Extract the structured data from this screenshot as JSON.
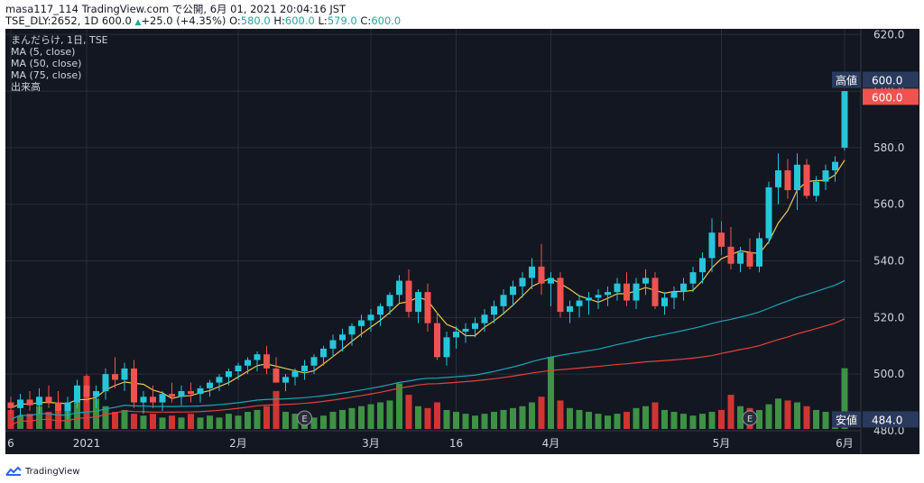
{
  "header": {
    "line1": "masa117_114 TradingView.com で公開, 6月 01, 2021 20:04:16 JST",
    "symbol_info": "TSE_DLY:2652, 1D 600.0",
    "change": "+25.0 (+4.35%)",
    "o_label": "O:",
    "o_value": "580.0",
    "h_label": "H:",
    "h_value": "600.0",
    "l_label": "L:",
    "l_value": "579.0",
    "c_label": "C:",
    "c_value": "600.0"
  },
  "legend": {
    "title": "まんだらけ, 1日, TSE",
    "ma5": "MA (5, close)",
    "ma50": "MA (50, close)",
    "ma75": "MA (75, close)",
    "volume": "出来高"
  },
  "tags": {
    "high_label": "高値",
    "high_value": "600.0",
    "last_value": "600.0",
    "low_label": "安値",
    "low_value": "484.0"
  },
  "footer": {
    "brand": "TradingView"
  },
  "colors": {
    "background": "#131722",
    "up": "#26c6da",
    "down": "#ef5350",
    "vol_up": "#43a047",
    "vol_down": "#e53935",
    "ma5": "#f2c84b",
    "ma50": "#1ba6b5",
    "ma75": "#e0443a",
    "grid": "#2a2e39",
    "text": "#d1d4dc"
  },
  "chart_data": {
    "type": "candlestick",
    "y_axis": {
      "ticks": [
        480,
        500,
        520,
        540,
        560,
        580,
        600,
        620
      ],
      "range": [
        480,
        622
      ]
    },
    "x_ticks": [
      "6",
      "2021",
      "2月",
      "3月",
      "16",
      "4月",
      "5月",
      "6月"
    ],
    "earnings_markers": [
      "E",
      "E"
    ],
    "series": [
      {
        "name": "price",
        "candles": [
          [
            490,
            492,
            486,
            488
          ],
          [
            488,
            493,
            485,
            491
          ],
          [
            491,
            494,
            487,
            489
          ],
          [
            489,
            495,
            486,
            492
          ],
          [
            492,
            496,
            488,
            490
          ],
          [
            490,
            494,
            486,
            487
          ],
          [
            487,
            492,
            484,
            490
          ],
          [
            490,
            498,
            488,
            496
          ],
          [
            496,
            500,
            490,
            492
          ],
          [
            492,
            496,
            488,
            494
          ],
          [
            494,
            502,
            491,
            500
          ],
          [
            500,
            506,
            495,
            498
          ],
          [
            498,
            504,
            494,
            502
          ],
          [
            502,
            505,
            488,
            490
          ],
          [
            490,
            494,
            486,
            492
          ],
          [
            492,
            496,
            488,
            490
          ],
          [
            490,
            494,
            487,
            493
          ],
          [
            493,
            497,
            490,
            492
          ],
          [
            492,
            496,
            489,
            494
          ],
          [
            494,
            497,
            490,
            493
          ],
          [
            493,
            496,
            490,
            495
          ],
          [
            495,
            498,
            492,
            497
          ],
          [
            497,
            500,
            494,
            499
          ],
          [
            499,
            502,
            496,
            501
          ],
          [
            501,
            504,
            498,
            503
          ],
          [
            503,
            506,
            500,
            505
          ],
          [
            505,
            508,
            501,
            507
          ],
          [
            507,
            510,
            500,
            502
          ],
          [
            502,
            506,
            498,
            497
          ],
          [
            497,
            500,
            494,
            499
          ],
          [
            499,
            502,
            496,
            501
          ],
          [
            501,
            505,
            498,
            503
          ],
          [
            503,
            507,
            500,
            506
          ],
          [
            506,
            510,
            503,
            509
          ],
          [
            509,
            514,
            506,
            512
          ],
          [
            512,
            516,
            508,
            514
          ],
          [
            514,
            518,
            510,
            517
          ],
          [
            517,
            521,
            513,
            519
          ],
          [
            519,
            523,
            515,
            521
          ],
          [
            521,
            525,
            517,
            524
          ],
          [
            524,
            529,
            521,
            528
          ],
          [
            528,
            535,
            525,
            533
          ],
          [
            533,
            537,
            520,
            522
          ],
          [
            522,
            530,
            518,
            529
          ],
          [
            529,
            532,
            515,
            518
          ],
          [
            518,
            522,
            505,
            506
          ],
          [
            506,
            515,
            503,
            513
          ],
          [
            513,
            517,
            509,
            515
          ],
          [
            515,
            518,
            511,
            516
          ],
          [
            516,
            520,
            513,
            518
          ],
          [
            518,
            523,
            515,
            521
          ],
          [
            521,
            526,
            518,
            524
          ],
          [
            524,
            530,
            521,
            528
          ],
          [
            528,
            533,
            524,
            531
          ],
          [
            531,
            536,
            527,
            534
          ],
          [
            534,
            541,
            530,
            538
          ],
          [
            538,
            546,
            528,
            532
          ],
          [
            532,
            536,
            524,
            534
          ],
          [
            534,
            536,
            520,
            522
          ],
          [
            522,
            526,
            518,
            524
          ],
          [
            524,
            528,
            520,
            526
          ],
          [
            526,
            529,
            521,
            527
          ],
          [
            527,
            530,
            523,
            528
          ],
          [
            528,
            531,
            524,
            529
          ],
          [
            529,
            534,
            526,
            532
          ],
          [
            532,
            536,
            524,
            526
          ],
          [
            526,
            534,
            523,
            532
          ],
          [
            532,
            537,
            528,
            534
          ],
          [
            534,
            536,
            523,
            524
          ],
          [
            524,
            529,
            521,
            527
          ],
          [
            527,
            531,
            523,
            529
          ],
          [
            529,
            534,
            526,
            532
          ],
          [
            532,
            538,
            529,
            536
          ],
          [
            536,
            543,
            532,
            541
          ],
          [
            541,
            555,
            536,
            550
          ],
          [
            550,
            554,
            542,
            545
          ],
          [
            545,
            552,
            537,
            539
          ],
          [
            539,
            545,
            536,
            543
          ],
          [
            543,
            548,
            537,
            538
          ],
          [
            538,
            550,
            536,
            548
          ],
          [
            548,
            568,
            546,
            566
          ],
          [
            566,
            578,
            560,
            572
          ],
          [
            572,
            576,
            562,
            565
          ],
          [
            565,
            578,
            558,
            574
          ],
          [
            574,
            576,
            562,
            563
          ],
          [
            563,
            570,
            561,
            568
          ],
          [
            568,
            574,
            565,
            572
          ],
          [
            572,
            577,
            568,
            575
          ],
          [
            580,
            600,
            579,
            600
          ]
        ]
      },
      {
        "name": "volume",
        "values": [
          0.5,
          0.35,
          0.4,
          0.6,
          0.45,
          0.55,
          0.5,
          0.7,
          1.4,
          0.8,
          0.6,
          0.45,
          0.5,
          0.4,
          0.35,
          0.4,
          0.3,
          0.35,
          0.3,
          0.4,
          0.3,
          0.35,
          0.3,
          0.4,
          0.35,
          0.45,
          0.5,
          0.6,
          1.0,
          0.45,
          0.4,
          0.35,
          0.3,
          0.35,
          0.45,
          0.5,
          0.55,
          0.6,
          0.65,
          0.7,
          0.75,
          1.2,
          0.9,
          0.6,
          0.55,
          0.7,
          0.5,
          0.45,
          0.4,
          0.35,
          0.4,
          0.45,
          0.5,
          0.55,
          0.6,
          0.7,
          0.85,
          1.9,
          0.75,
          0.55,
          0.5,
          0.45,
          0.4,
          0.35,
          0.4,
          0.45,
          0.55,
          0.6,
          0.7,
          0.5,
          0.45,
          0.4,
          0.35,
          0.4,
          0.45,
          0.5,
          0.9,
          0.6,
          0.55,
          0.5,
          0.65,
          0.8,
          0.75,
          0.7,
          0.6,
          0.5,
          0.45,
          0.4,
          1.6
        ]
      }
    ]
  }
}
